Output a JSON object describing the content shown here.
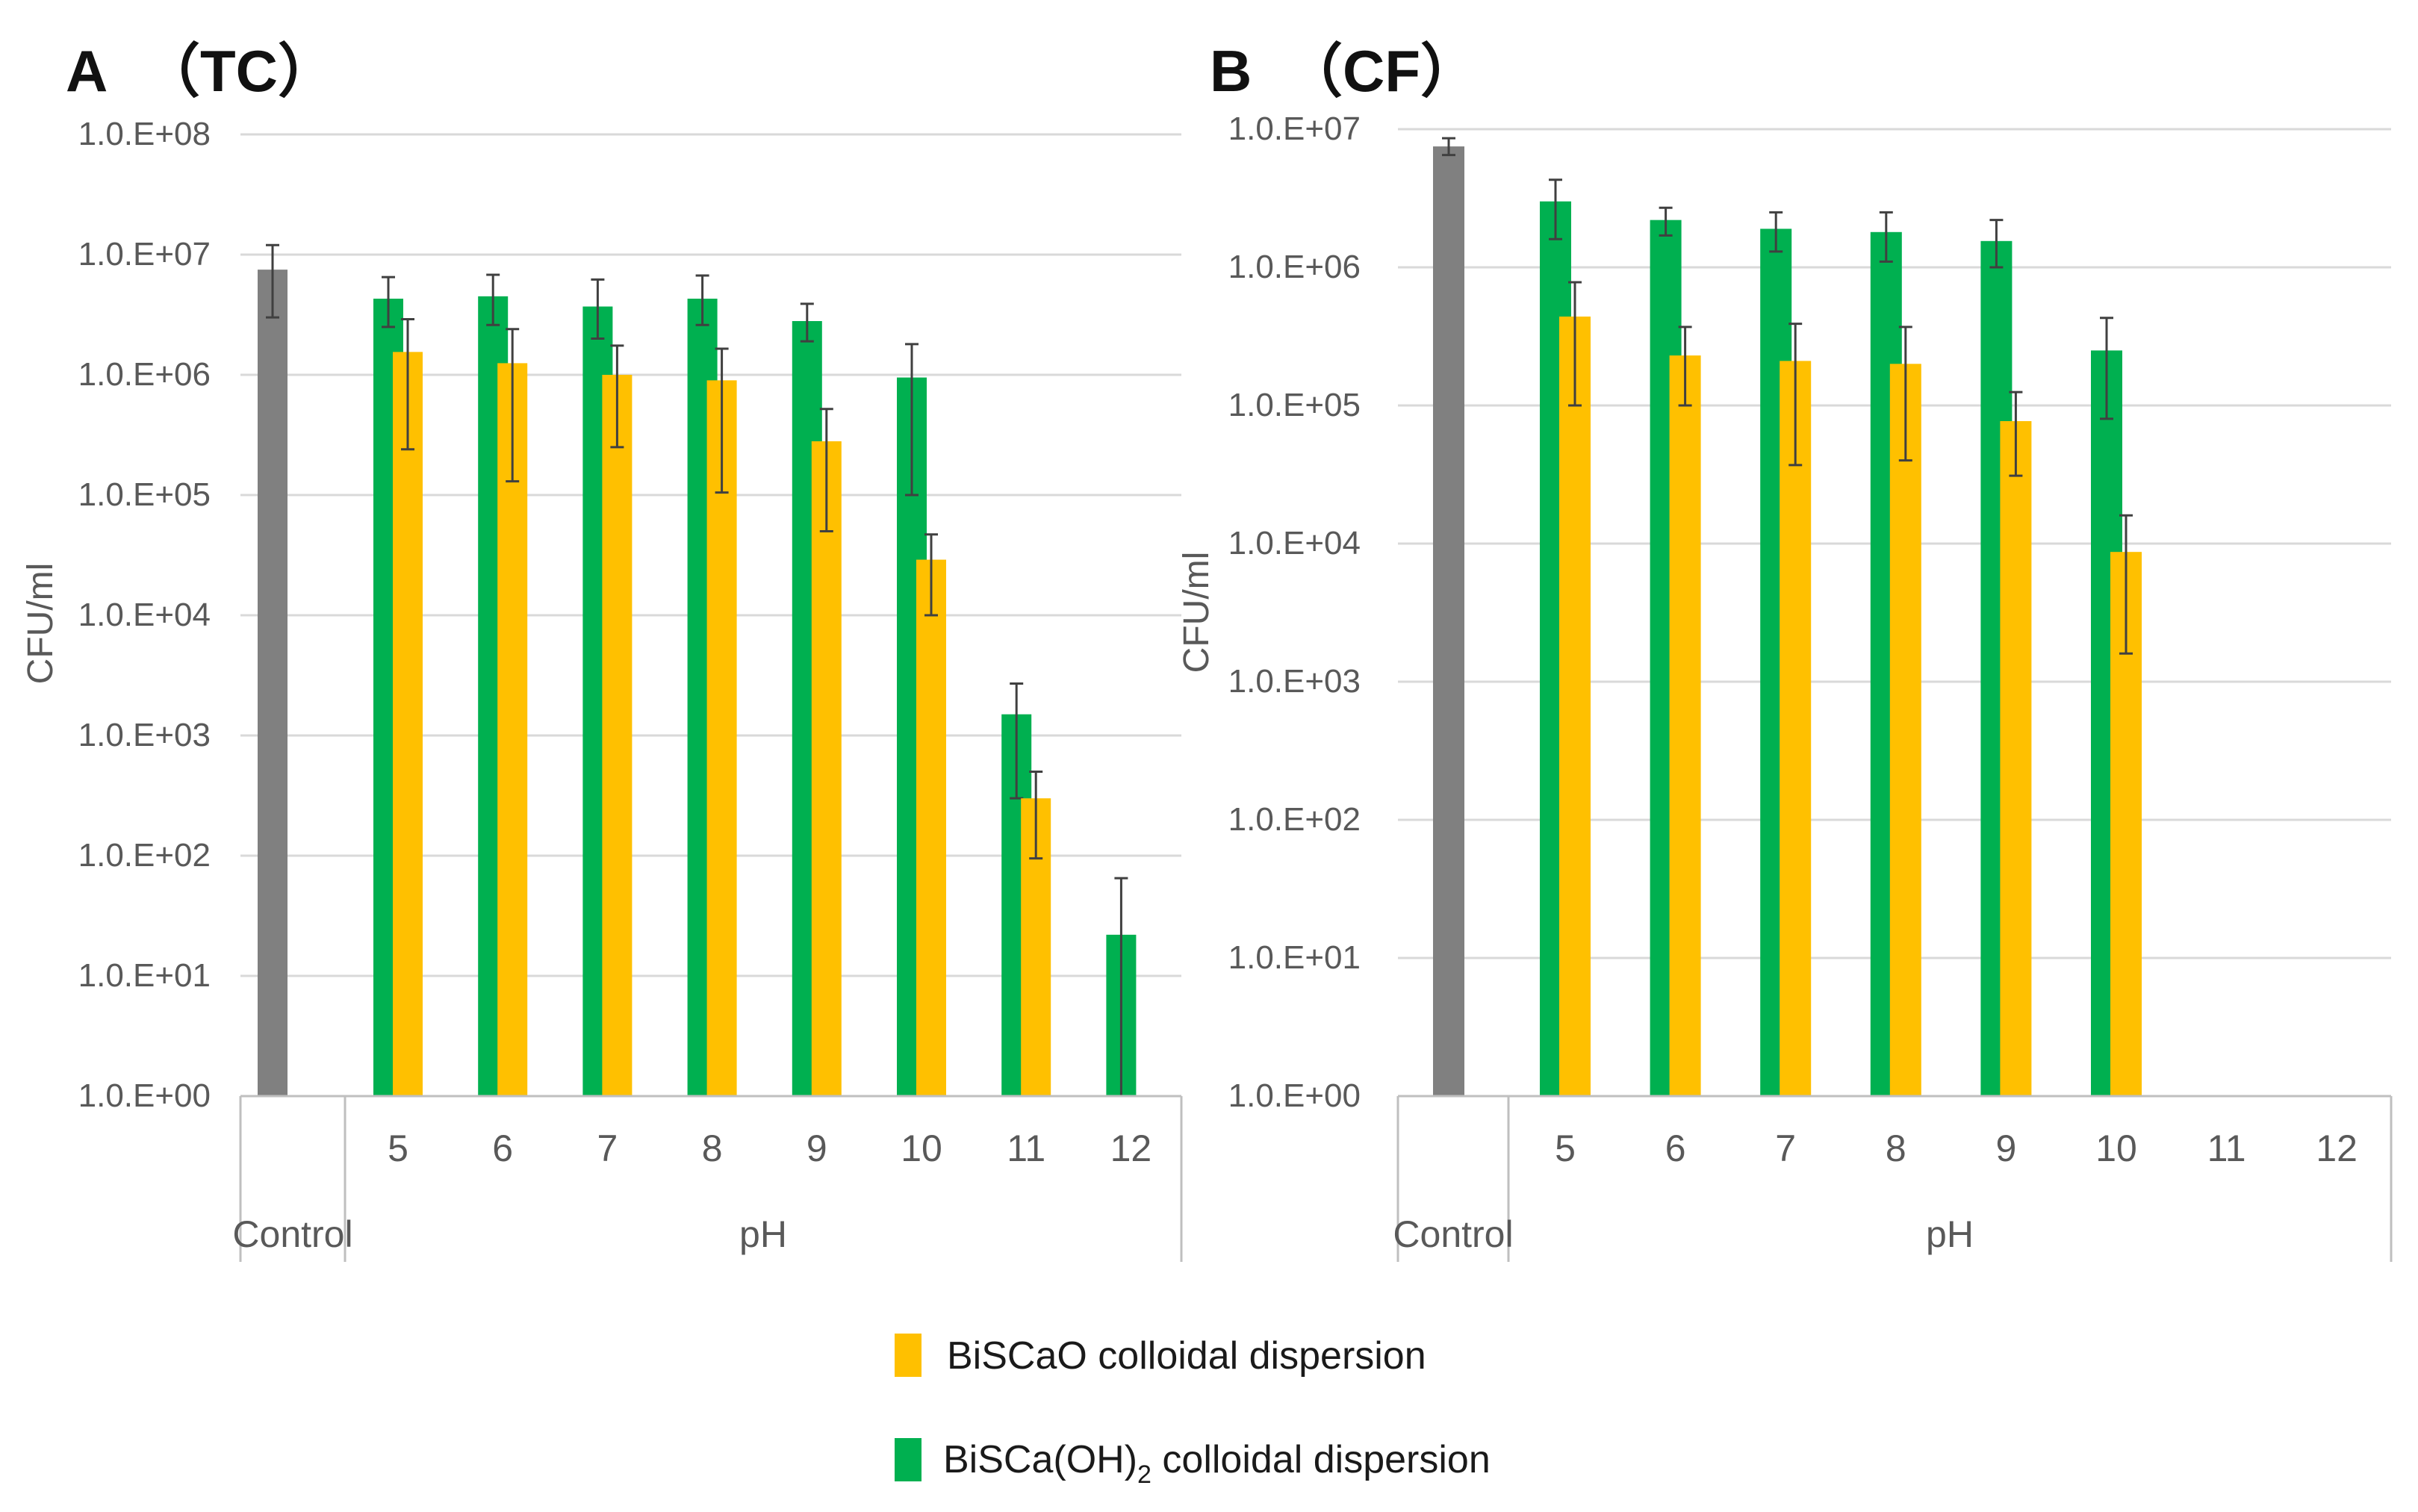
{
  "legend": {
    "items": [
      {
        "key": "biscao",
        "label": "BiSCaO colloidal dispersion",
        "color": "#ffc000"
      },
      {
        "key": "biscaoh",
        "label_main": "BiSCa(OH)",
        "label_sub": "2",
        "label_rest": " colloidal dispersion",
        "color": "#00b050"
      }
    ]
  },
  "colors": {
    "control": "#808080",
    "biscaoh": "#00b050",
    "biscao": "#ffc000"
  },
  "chart_data": [
    {
      "type": "bar",
      "panel": "A",
      "title_letter": "A",
      "title_paren": "（TC）",
      "ylabel": "CFU/ml",
      "yscale": "log",
      "ylim": [
        1,
        100000000
      ],
      "yticks": [
        "1.0.E+00",
        "1.0.E+01",
        "1.0.E+02",
        "1.0.E+03",
        "1.0.E+04",
        "1.0.E+05",
        "1.0.E+06",
        "1.0.E+07",
        "1.0.E+08"
      ],
      "group_labels": {
        "control": "Control",
        "ph": "pH"
      },
      "categories": [
        "5",
        "6",
        "7",
        "8",
        "9",
        "10",
        "11",
        "12"
      ],
      "control": {
        "value": 7500000,
        "err_low": 3000000,
        "err_high": 12000000
      },
      "series": [
        {
          "name": "BiSCa(OH)2 colloidal dispersion",
          "key": "biscaoh",
          "values": [
            4300000,
            4500000,
            3700000,
            4300000,
            2800000,
            950000,
            1500,
            22
          ],
          "err_low": [
            2500000,
            2600000,
            2000000,
            2600000,
            1900000,
            100000,
            300,
            0
          ],
          "err_high": [
            6500000,
            6800000,
            6200000,
            6700000,
            3900000,
            1800000,
            2700,
            65
          ]
        },
        {
          "name": "BiSCaO colloidal dispersion",
          "key": "biscao",
          "values": [
            1550000,
            1250000,
            1000000,
            900000,
            280000,
            29000,
            300,
            null
          ],
          "err_low": [
            240000,
            130000,
            250000,
            105000,
            50000,
            10000,
            95,
            null
          ],
          "err_high": [
            2900000,
            2400000,
            1750000,
            1650000,
            520000,
            47000,
            500,
            null
          ]
        }
      ]
    },
    {
      "type": "bar",
      "panel": "B",
      "title_letter": "B",
      "title_paren": "（CF）",
      "ylabel": "CFU/ml",
      "yscale": "log",
      "ylim": [
        1,
        10000000
      ],
      "yticks": [
        "1.0.E+00",
        "1.0.E+01",
        "1.0.E+02",
        "1.0.E+03",
        "1.0.E+04",
        "1.0.E+05",
        "1.0.E+06",
        "1.0.E+07"
      ],
      "group_labels": {
        "control": "Control",
        "ph": "pH"
      },
      "categories": [
        "5",
        "6",
        "7",
        "8",
        "9",
        "10",
        "11",
        "12"
      ],
      "control": {
        "value": 7500000,
        "err_low": 6500000,
        "err_high": 8600000
      },
      "series": [
        {
          "name": "BiSCa(OH)2 colloidal dispersion",
          "key": "biscaoh",
          "values": [
            3000000,
            2200000,
            1900000,
            1800000,
            1550000,
            250000,
            null,
            null
          ],
          "err_low": [
            1600000,
            1700000,
            1300000,
            1100000,
            1000000,
            80000,
            null,
            null
          ],
          "err_high": [
            4300000,
            2700000,
            2500000,
            2500000,
            2200000,
            430000,
            null,
            null
          ]
        },
        {
          "name": "BiSCaO colloidal dispersion",
          "key": "biscao",
          "values": [
            440000,
            230000,
            210000,
            200000,
            77000,
            8700,
            null,
            null
          ],
          "err_low": [
            100000,
            100000,
            37000,
            40000,
            31000,
            1600,
            null,
            null
          ],
          "err_high": [
            780000,
            370000,
            390000,
            370000,
            125000,
            16000,
            null,
            null
          ]
        }
      ]
    }
  ]
}
